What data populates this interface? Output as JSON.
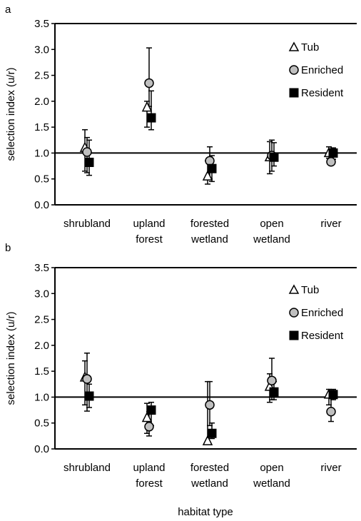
{
  "chart_data": [
    {
      "type": "scatter",
      "panel_label": "a",
      "ylabel": "selection index (u/r)",
      "xlabel": "",
      "ylim": [
        0,
        3.5
      ],
      "yticks": [
        "0.0",
        "0.5",
        "1.0",
        "1.5",
        "2.0",
        "2.5",
        "3.0",
        "3.5"
      ],
      "reference_line": 1.0,
      "grid": false,
      "legend_position": "top-right",
      "categories": [
        [
          "shrubland"
        ],
        [
          "upland",
          "forest"
        ],
        [
          "forested",
          "wetland"
        ],
        [
          "open",
          "wetland"
        ],
        [
          "river"
        ]
      ],
      "series": [
        {
          "name": "Tub",
          "marker": "triangle-open",
          "values": [
            1.1,
            1.88,
            0.55,
            0.92,
            1.0
          ],
          "err_low": [
            0.65,
            1.5,
            0.4,
            0.6,
            0.9
          ],
          "err_high": [
            1.45,
            2.0,
            0.85,
            1.22,
            1.12
          ]
        },
        {
          "name": "Enriched",
          "marker": "circle-gray",
          "values": [
            1.02,
            2.35,
            0.85,
            0.95,
            0.83
          ],
          "err_low": [
            0.62,
            1.9,
            0.5,
            0.65,
            0.78
          ],
          "err_high": [
            1.3,
            3.03,
            1.12,
            1.25,
            1.05
          ]
        },
        {
          "name": "Resident",
          "marker": "square-filled",
          "values": [
            0.82,
            1.68,
            0.7,
            0.92,
            1.0
          ],
          "err_low": [
            0.57,
            1.45,
            0.45,
            0.75,
            0.88
          ],
          "err_high": [
            1.25,
            2.2,
            0.95,
            1.2,
            1.1
          ]
        }
      ],
      "colors": {
        "tub": "#ffffff",
        "enriched": "#bfbfbf",
        "resident": "#000000"
      }
    },
    {
      "type": "scatter",
      "panel_label": "b",
      "ylabel": "selection index (u/r)",
      "xlabel": "habitat type",
      "ylim": [
        0,
        3.5
      ],
      "yticks": [
        "0.0",
        "0.5",
        "1.0",
        "1.5",
        "2.0",
        "2.5",
        "3.0",
        "3.5"
      ],
      "reference_line": 1.0,
      "grid": false,
      "legend_position": "top-right",
      "categories": [
        [
          "shrubland"
        ],
        [
          "upland",
          "forest"
        ],
        [
          "forested",
          "wetland"
        ],
        [
          "open",
          "wetland"
        ],
        [
          "river"
        ]
      ],
      "series": [
        {
          "name": "Tub",
          "marker": "triangle-open",
          "values": [
            1.38,
            0.6,
            0.15,
            1.2,
            1.05
          ],
          "err_low": [
            0.85,
            0.3,
            0.1,
            0.9,
            0.85
          ],
          "err_high": [
            1.7,
            0.88,
            1.3,
            1.45,
            1.15
          ]
        },
        {
          "name": "Enriched",
          "marker": "circle-gray",
          "values": [
            1.35,
            0.43,
            0.85,
            1.32,
            0.72
          ],
          "err_low": [
            0.73,
            0.25,
            0.45,
            0.95,
            0.53
          ],
          "err_high": [
            1.85,
            0.72,
            1.3,
            1.75,
            1.05
          ]
        },
        {
          "name": "Resident",
          "marker": "square-filled",
          "values": [
            1.02,
            0.75,
            0.3,
            1.1,
            1.05
          ],
          "err_low": [
            0.8,
            0.45,
            0.2,
            0.95,
            0.95
          ],
          "err_high": [
            1.25,
            0.9,
            0.5,
            1.3,
            1.15
          ]
        }
      ],
      "colors": {
        "tub": "#ffffff",
        "enriched": "#bfbfbf",
        "resident": "#000000"
      }
    }
  ]
}
